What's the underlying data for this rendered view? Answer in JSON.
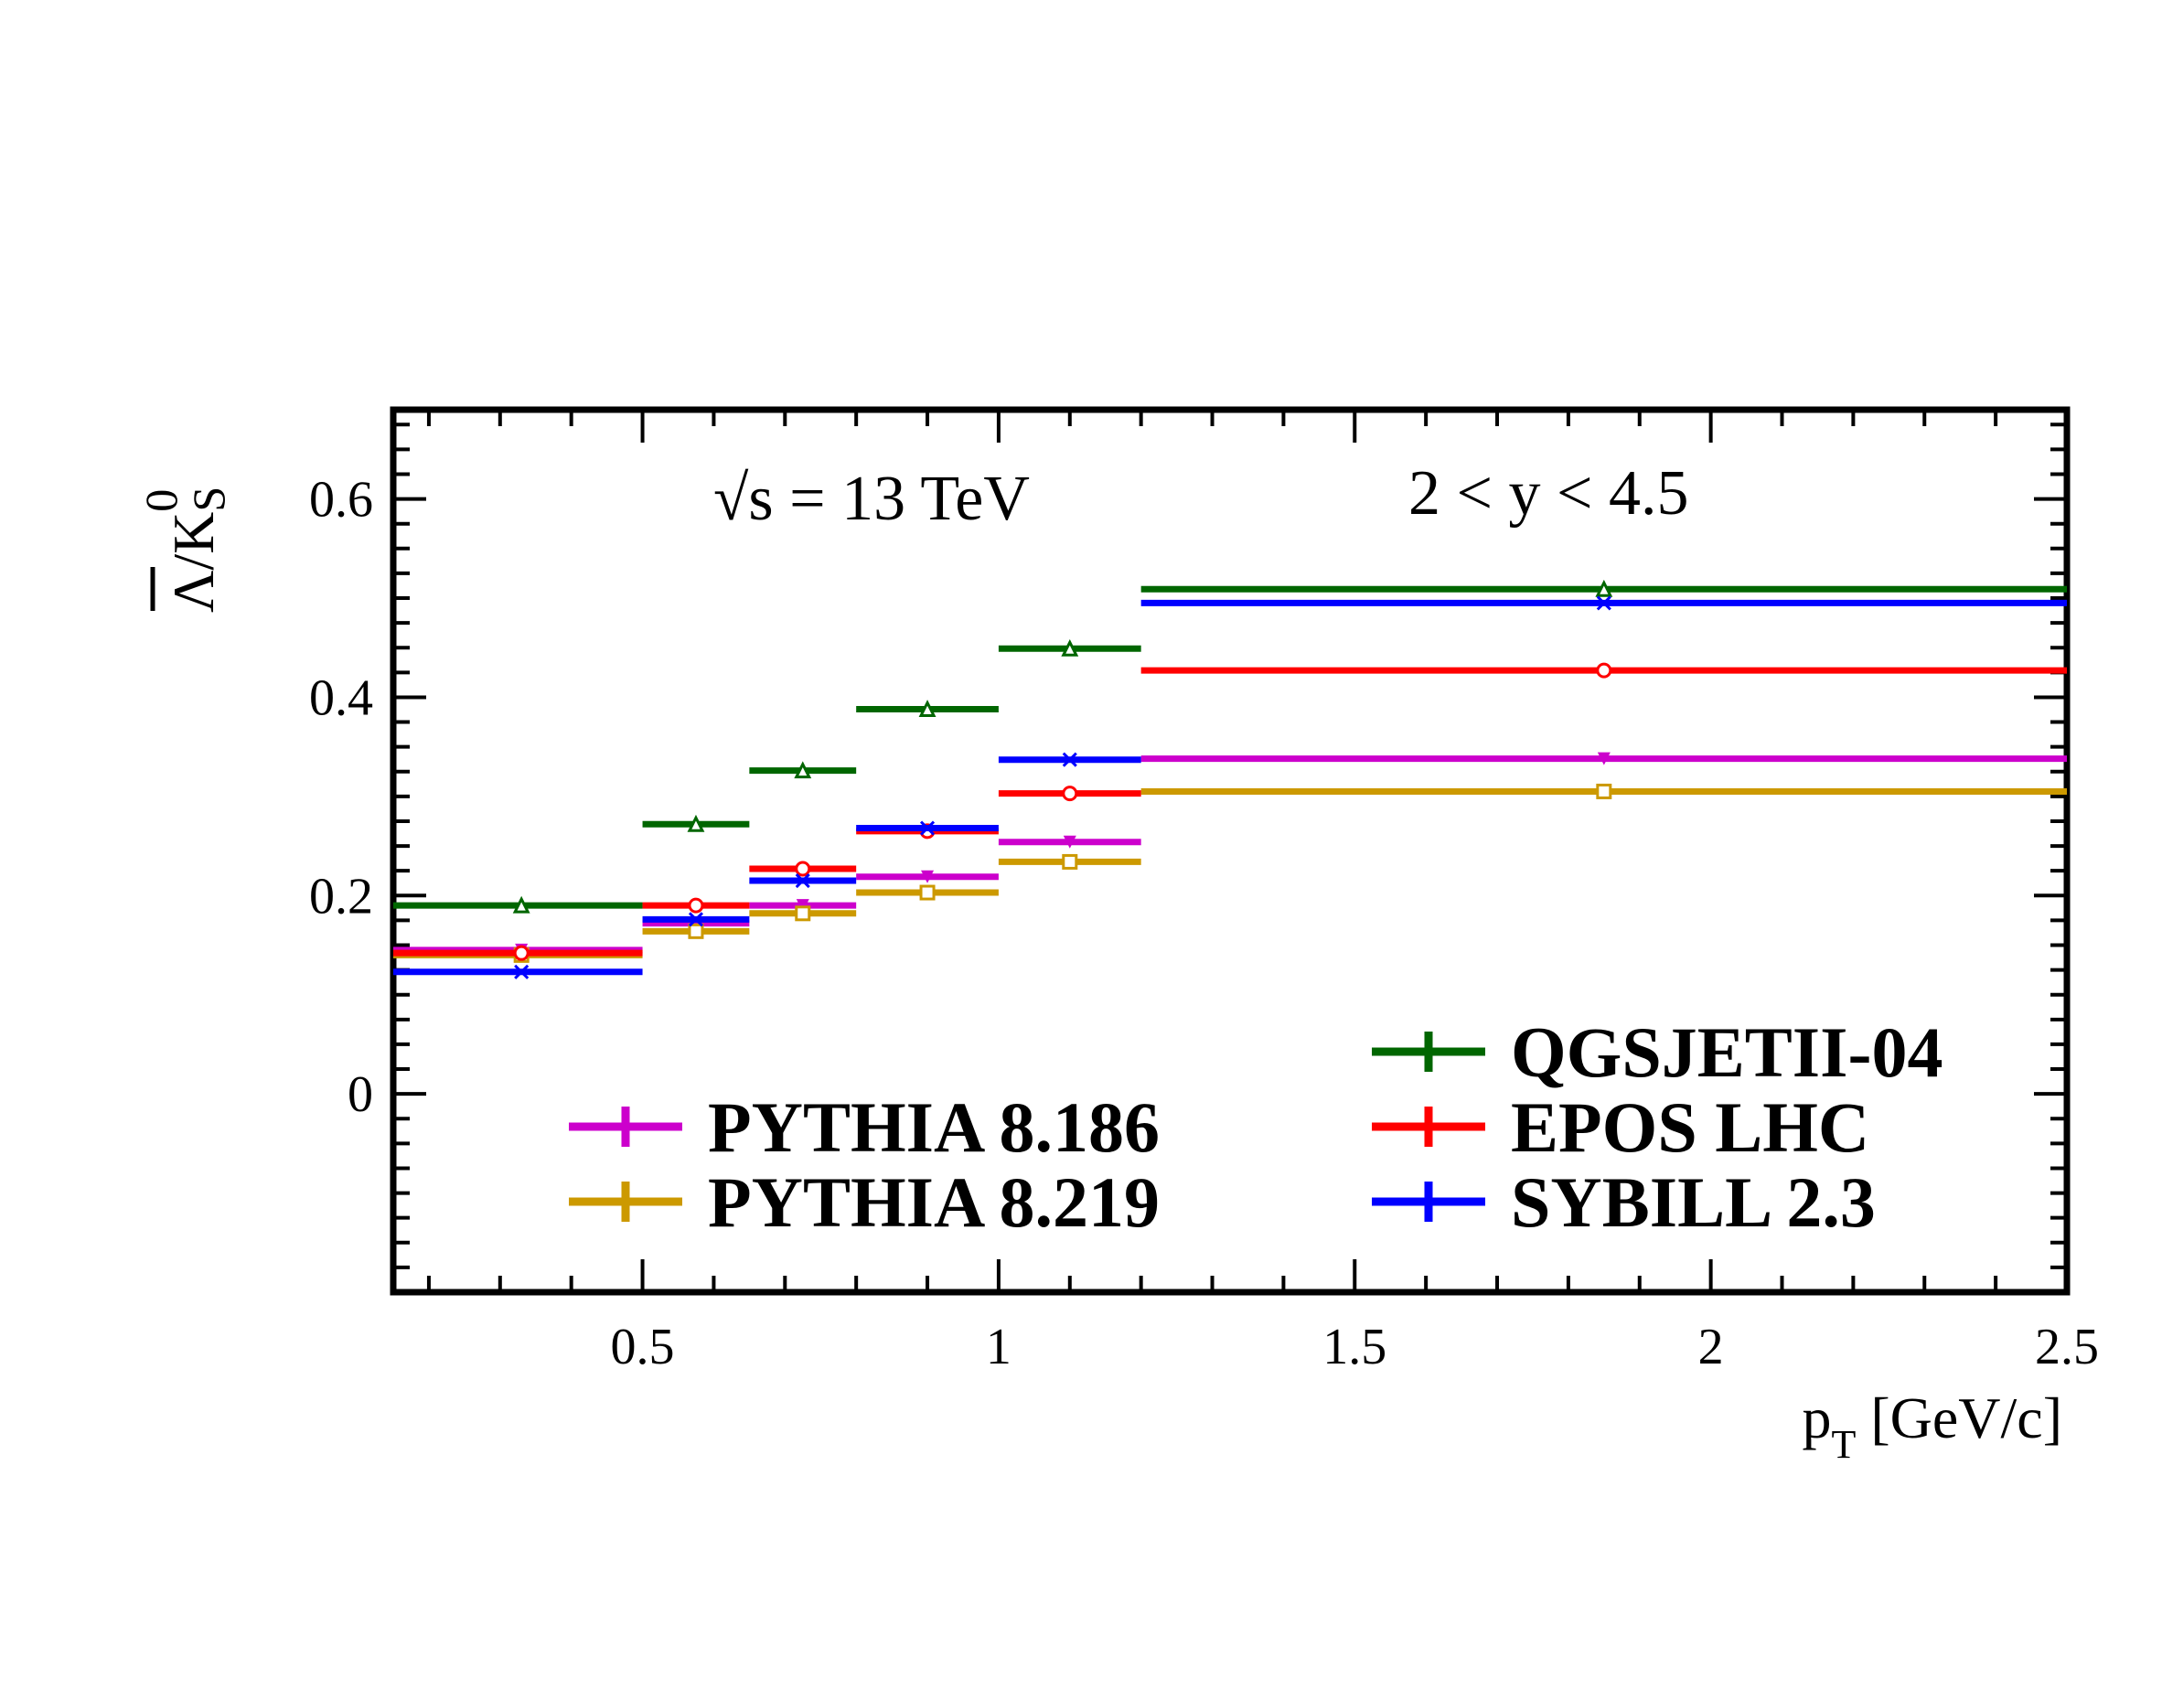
{
  "chart_data": {
    "type": "line",
    "annotations": {
      "energy": "√s = 13 TeV",
      "rapidity": "2 < y < 4.5"
    },
    "xlabel": {
      "base": "p",
      "subscript": "T",
      "unit": " [GeV/c]"
    },
    "ylabel": {
      "numerator": "Λ",
      "denominator": "K",
      "sup": "0",
      "sub": "S"
    },
    "xlim": [
      0.15,
      2.5
    ],
    "ylim": [
      -0.2,
      0.69
    ],
    "x_ticks": [
      0.5,
      1,
      1.5,
      2,
      2.5
    ],
    "x_tick_labels": [
      "0.5",
      "1",
      "1.5",
      "2",
      "2.5"
    ],
    "y_ticks": [
      0,
      0.2,
      0.4,
      0.6
    ],
    "y_tick_labels": [
      "0",
      "0.2",
      "0.4",
      "0.6"
    ],
    "bins": [
      [
        0.15,
        0.5
      ],
      [
        0.5,
        0.65
      ],
      [
        0.65,
        0.8
      ],
      [
        0.8,
        1.0
      ],
      [
        1.0,
        1.2
      ],
      [
        1.2,
        2.5
      ]
    ],
    "bin_centers": [
      0.33,
      0.575,
      0.725,
      0.9,
      1.1,
      1.85
    ],
    "series": [
      {
        "name": "PYTHIA 8.186",
        "color": "#CC00CC",
        "marker": "triangle-down",
        "values": [
          0.145,
          0.172,
          0.19,
          0.219,
          0.254,
          0.338
        ]
      },
      {
        "name": "PYTHIA 8.219",
        "color": "#CC9900",
        "marker": "square-open",
        "values": [
          0.14,
          0.164,
          0.182,
          0.203,
          0.234,
          0.305
        ]
      },
      {
        "name": "QGSJETII-04",
        "color": "#006600",
        "marker": "triangle-open",
        "values": [
          0.19,
          0.272,
          0.326,
          0.388,
          0.449,
          0.509
        ]
      },
      {
        "name": "EPOS LHC",
        "color": "#FF0000",
        "marker": "circle-open",
        "values": [
          0.142,
          0.19,
          0.227,
          0.265,
          0.303,
          0.427
        ]
      },
      {
        "name": "SYBILL 2.3",
        "color": "#0000FF",
        "marker": "cross",
        "values": [
          0.123,
          0.176,
          0.215,
          0.268,
          0.337,
          0.495
        ]
      }
    ],
    "legend": {
      "left_column": [
        "PYTHIA 8.186",
        "PYTHIA 8.219"
      ],
      "right_column": [
        "QGSJETII-04",
        "EPOS LHC",
        "SYBILL 2.3"
      ]
    }
  }
}
